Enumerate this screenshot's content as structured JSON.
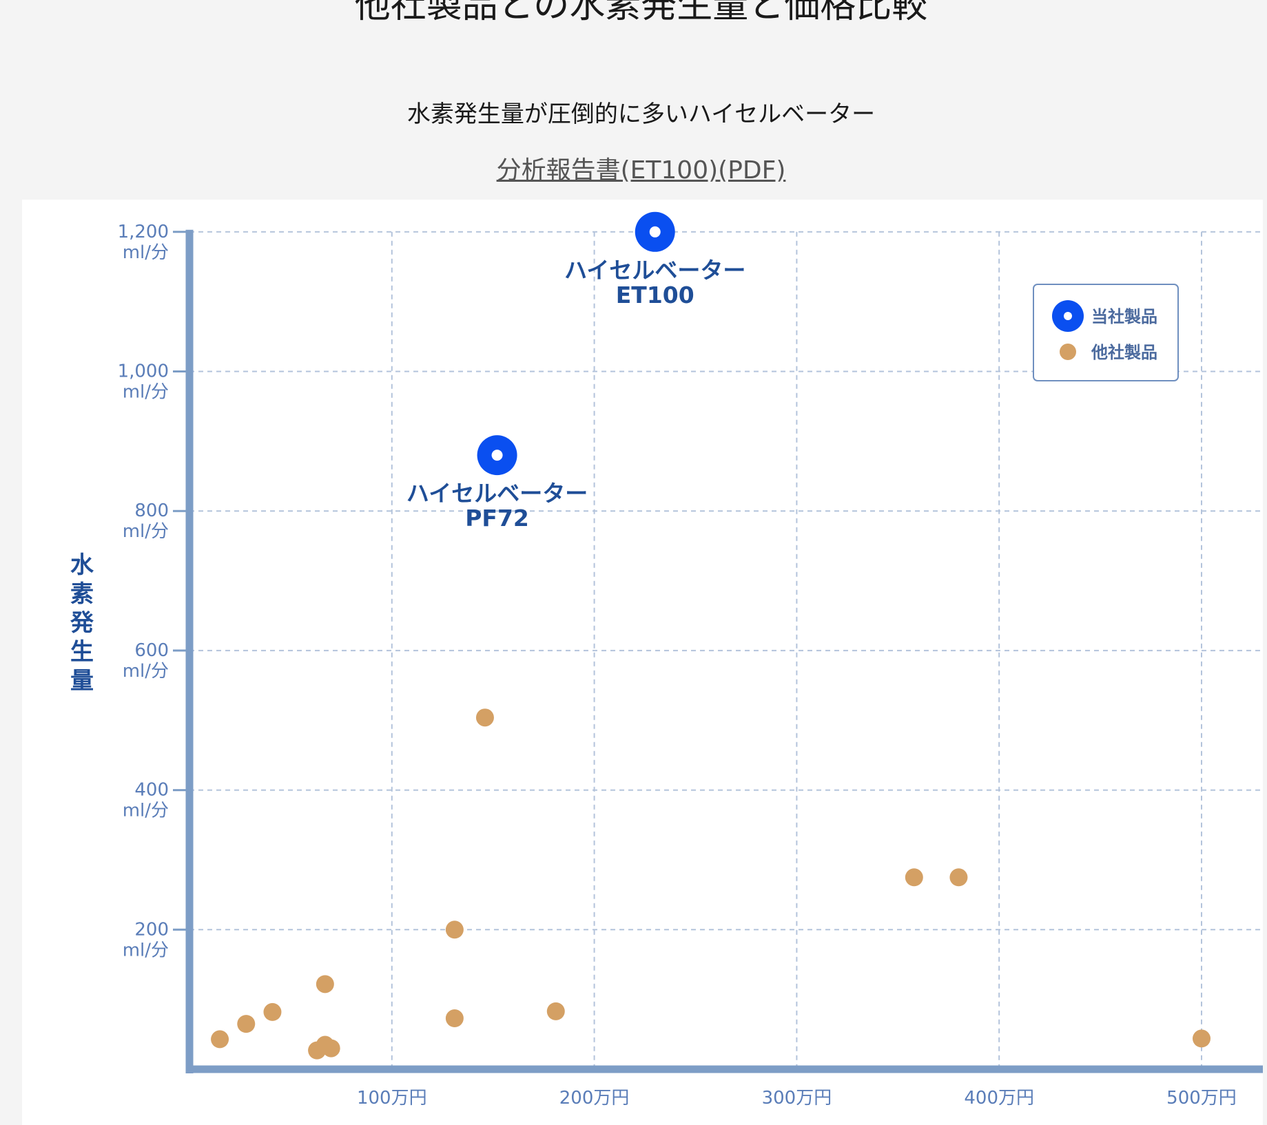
{
  "page": {
    "title": "他社製品との水素発生量と価格比較",
    "subtitle": "水素発生量が圧倒的に多いハイセルベーター",
    "report_link": "分析報告書(ET100)(PDF)"
  },
  "colors": {
    "own_product": "#0a4ff0",
    "other_product": "#d4a064",
    "axis": "#7d9dc6",
    "grid": "#b3c3db",
    "label": "#1f4e97"
  },
  "chart_data": {
    "type": "scatter",
    "ylabel": "水素発生量",
    "xlim": [
      0,
      530
    ],
    "ylim": [
      0,
      1200
    ],
    "grid": true,
    "legend_position": "top-right",
    "x_ticks": [
      {
        "value": 100,
        "label": "100万円"
      },
      {
        "value": 200,
        "label": "200万円"
      },
      {
        "value": 300,
        "label": "300万円"
      },
      {
        "value": 400,
        "label": "400万円"
      },
      {
        "value": 500,
        "label": "500万円"
      }
    ],
    "y_ticks": [
      {
        "value": 200,
        "label": "200",
        "unit": "ml/分"
      },
      {
        "value": 400,
        "label": "400",
        "unit": "ml/分"
      },
      {
        "value": 600,
        "label": "600",
        "unit": "ml/分"
      },
      {
        "value": 800,
        "label": "800",
        "unit": "ml/分"
      },
      {
        "value": 1000,
        "label": "1,000",
        "unit": "ml/分"
      },
      {
        "value": 1200,
        "label": "1,200",
        "unit": "ml/分"
      }
    ],
    "series": [
      {
        "name": "当社製品",
        "points": [
          {
            "x": 230,
            "y": 1200,
            "label": [
              "ハイセルベーター",
              "ET100"
            ]
          },
          {
            "x": 152,
            "y": 880,
            "label": [
              "ハイセルベーター",
              "PF72"
            ]
          }
        ]
      },
      {
        "name": "他社製品",
        "points": [
          {
            "x": 15,
            "y": 43
          },
          {
            "x": 28,
            "y": 65
          },
          {
            "x": 41,
            "y": 82
          },
          {
            "x": 67,
            "y": 122
          },
          {
            "x": 63,
            "y": 27
          },
          {
            "x": 67,
            "y": 35
          },
          {
            "x": 70,
            "y": 30
          },
          {
            "x": 131,
            "y": 73
          },
          {
            "x": 131,
            "y": 200
          },
          {
            "x": 146,
            "y": 504
          },
          {
            "x": 181,
            "y": 83
          },
          {
            "x": 358,
            "y": 275
          },
          {
            "x": 380,
            "y": 275
          },
          {
            "x": 500,
            "y": 44
          }
        ]
      }
    ]
  }
}
